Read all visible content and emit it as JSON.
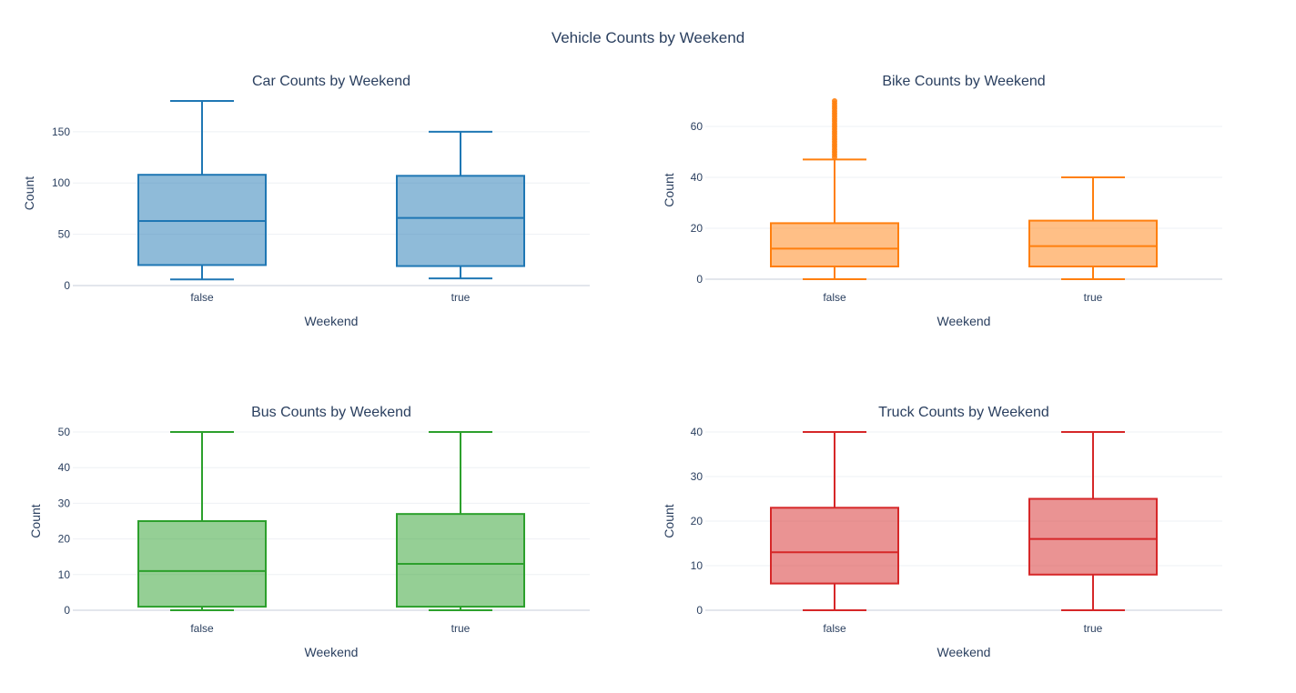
{
  "title": "Vehicle Counts by Weekend",
  "chart_data": [
    {
      "type": "box",
      "title": "Car Counts by Weekend",
      "xlabel": "Weekend",
      "ylabel": "Count",
      "color": "#1f77b4",
      "fill": "rgba(31,119,180,0.5)",
      "categories": [
        "false",
        "true"
      ],
      "yticks": [
        0,
        50,
        100,
        150
      ],
      "ylim": [
        0,
        180
      ],
      "boxes": [
        {
          "category": "false",
          "min": 6,
          "q1": 20,
          "median": 63,
          "q3": 108,
          "max": 180,
          "outliers": []
        },
        {
          "category": "true",
          "min": 7,
          "q1": 19,
          "median": 66,
          "q3": 107,
          "max": 150,
          "outliers": []
        }
      ]
    },
    {
      "type": "box",
      "title": "Bike Counts by Weekend",
      "xlabel": "Weekend",
      "ylabel": "Count",
      "color": "#ff7f0e",
      "fill": "rgba(255,127,14,0.5)",
      "categories": [
        "false",
        "true"
      ],
      "yticks": [
        0,
        20,
        40,
        60
      ],
      "ylim": [
        0,
        70
      ],
      "boxes": [
        {
          "category": "false",
          "min": 0,
          "q1": 5,
          "median": 12,
          "q3": 22,
          "max": 47,
          "outliers": [
            48,
            49,
            50,
            51,
            52,
            53,
            54,
            55,
            56,
            57,
            58,
            59,
            60,
            61,
            62,
            63,
            64,
            65,
            66,
            67,
            68,
            69,
            70
          ]
        },
        {
          "category": "true",
          "min": 0,
          "q1": 5,
          "median": 13,
          "q3": 23,
          "max": 40,
          "outliers": []
        }
      ]
    },
    {
      "type": "box",
      "title": "Bus Counts by Weekend",
      "xlabel": "Weekend",
      "ylabel": "Count",
      "color": "#2ca02c",
      "fill": "rgba(44,160,44,0.5)",
      "categories": [
        "false",
        "true"
      ],
      "yticks": [
        0,
        10,
        20,
        30,
        40,
        50
      ],
      "ylim": [
        0,
        50
      ],
      "boxes": [
        {
          "category": "false",
          "min": 0,
          "q1": 1,
          "median": 11,
          "q3": 25,
          "max": 50,
          "outliers": []
        },
        {
          "category": "true",
          "min": 0,
          "q1": 1,
          "median": 13,
          "q3": 27,
          "max": 50,
          "outliers": []
        }
      ]
    },
    {
      "type": "box",
      "title": "Truck Counts by Weekend",
      "xlabel": "Weekend",
      "ylabel": "Count",
      "color": "#d62728",
      "fill": "rgba(214,39,40,0.5)",
      "categories": [
        "false",
        "true"
      ],
      "yticks": [
        0,
        10,
        20,
        30,
        40
      ],
      "ylim": [
        0,
        40
      ],
      "boxes": [
        {
          "category": "false",
          "min": 0,
          "q1": 6,
          "median": 13,
          "q3": 23,
          "max": 40,
          "outliers": []
        },
        {
          "category": "true",
          "min": 0,
          "q1": 8,
          "median": 16,
          "q3": 25,
          "max": 40,
          "outliers": []
        }
      ]
    }
  ]
}
